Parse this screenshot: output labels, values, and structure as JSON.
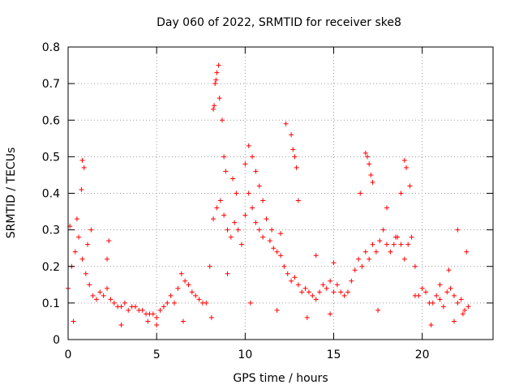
{
  "chart_data": {
    "type": "scatter",
    "title": "Day 060 of 2022, SRMTID for receiver ske8",
    "xlabel": "GPS time / hours",
    "ylabel": "SRMTID / TECUs",
    "xlim": [
      0,
      24
    ],
    "ylim": [
      0,
      0.8
    ],
    "xticks": [
      "0",
      "5",
      "10",
      "15",
      "20"
    ],
    "xtick_values": [
      0,
      5,
      10,
      15,
      20
    ],
    "yticks": [
      "0",
      "0.1",
      "0.2",
      "0.3",
      "0.4",
      "0.5",
      "0.6",
      "0.7",
      "0.8"
    ],
    "ytick_values": [
      0,
      0.1,
      0.2,
      0.3,
      0.4,
      0.5,
      0.6,
      0.7,
      0.8
    ],
    "grid": true,
    "marker": "plus",
    "series": [
      {
        "name": "SRMTID",
        "color": "#ff0000",
        "x": [
          0.0,
          0.2,
          0.4,
          0.6,
          0.8,
          1.0,
          1.2,
          1.4,
          1.6,
          1.8,
          2.0,
          2.2,
          2.4,
          2.6,
          2.8,
          3.0,
          3.2,
          3.4,
          3.6,
          3.8,
          4.0,
          4.2,
          4.4,
          4.6,
          4.8,
          5.0,
          5.2,
          5.4,
          5.6,
          5.8,
          6.0,
          6.2,
          6.4,
          6.6,
          6.8,
          7.0,
          7.2,
          7.4,
          7.6,
          7.8,
          8.0,
          8.2,
          8.4,
          8.6,
          8.8,
          9.0,
          9.2,
          9.4,
          9.6,
          9.8,
          10.0,
          10.2,
          10.4,
          10.6,
          10.8,
          11.0,
          11.2,
          11.4,
          11.6,
          11.8,
          12.0,
          12.2,
          12.4,
          12.6,
          12.8,
          13.0,
          13.2,
          13.4,
          13.6,
          13.8,
          14.0,
          14.2,
          14.4,
          14.6,
          14.8,
          15.0,
          15.2,
          15.4,
          15.6,
          15.8,
          16.0,
          16.2,
          16.4,
          16.6,
          16.8,
          17.0,
          17.2,
          17.4,
          17.6,
          17.8,
          18.0,
          18.2,
          18.4,
          18.6,
          18.8,
          19.0,
          19.2,
          19.4,
          19.6,
          19.8,
          20.0,
          20.2,
          20.4,
          20.6,
          20.8,
          21.0,
          21.2,
          21.4,
          21.6,
          21.8,
          22.0,
          22.2,
          22.4,
          22.6,
          0.1,
          0.5,
          0.75,
          0.8,
          0.9,
          1.1,
          1.3,
          2.2,
          2.3,
          8.2,
          8.25,
          8.3,
          8.35,
          8.4,
          8.5,
          8.55,
          8.7,
          8.8,
          8.9,
          9.3,
          9.5,
          10.0,
          10.2,
          10.4,
          10.6,
          10.8,
          11.0,
          11.5,
          12.0,
          12.3,
          12.6,
          12.7,
          12.8,
          12.9,
          13.0,
          14.0,
          15.0,
          16.5,
          16.8,
          16.9,
          17.0,
          17.1,
          17.2,
          18.0,
          18.5,
          18.8,
          19.0,
          19.1,
          19.3,
          21.0,
          21.5,
          22.0,
          22.5,
          0.3,
          3.0,
          4.5,
          5.0,
          6.5,
          8.1,
          9.0,
          10.3,
          11.8,
          13.5,
          14.8,
          17.5,
          19.6,
          20.5,
          21.8,
          22.3
        ],
        "y": [
          0.14,
          0.2,
          0.24,
          0.28,
          0.22,
          0.18,
          0.15,
          0.12,
          0.11,
          0.13,
          0.12,
          0.14,
          0.11,
          0.1,
          0.09,
          0.09,
          0.1,
          0.08,
          0.09,
          0.09,
          0.08,
          0.08,
          0.07,
          0.07,
          0.07,
          0.06,
          0.08,
          0.09,
          0.1,
          0.12,
          0.1,
          0.14,
          0.18,
          0.16,
          0.15,
          0.13,
          0.12,
          0.11,
          0.1,
          0.1,
          0.2,
          0.33,
          0.36,
          0.38,
          0.34,
          0.3,
          0.28,
          0.32,
          0.3,
          0.26,
          0.34,
          0.4,
          0.36,
          0.32,
          0.3,
          0.28,
          0.33,
          0.27,
          0.25,
          0.24,
          0.23,
          0.2,
          0.18,
          0.16,
          0.17,
          0.15,
          0.13,
          0.14,
          0.13,
          0.12,
          0.11,
          0.13,
          0.15,
          0.14,
          0.16,
          0.13,
          0.15,
          0.13,
          0.12,
          0.13,
          0.16,
          0.19,
          0.22,
          0.2,
          0.24,
          0.22,
          0.26,
          0.24,
          0.27,
          0.3,
          0.26,
          0.24,
          0.26,
          0.28,
          0.26,
          0.22,
          0.26,
          0.28,
          0.2,
          0.12,
          0.14,
          0.13,
          0.1,
          0.1,
          0.12,
          0.11,
          0.09,
          0.13,
          0.14,
          0.12,
          0.1,
          0.11,
          0.08,
          0.09,
          0.31,
          0.33,
          0.41,
          0.49,
          0.47,
          0.26,
          0.3,
          0.22,
          0.27,
          0.63,
          0.64,
          0.7,
          0.71,
          0.73,
          0.75,
          0.66,
          0.6,
          0.5,
          0.46,
          0.44,
          0.4,
          0.48,
          0.53,
          0.5,
          0.46,
          0.42,
          0.38,
          0.3,
          0.29,
          0.59,
          0.56,
          0.52,
          0.5,
          0.47,
          0.38,
          0.23,
          0.21,
          0.4,
          0.51,
          0.5,
          0.48,
          0.45,
          0.43,
          0.36,
          0.28,
          0.4,
          0.49,
          0.47,
          0.42,
          0.15,
          0.19,
          0.3,
          0.24,
          0.05,
          0.04,
          0.05,
          0.04,
          0.05,
          0.06,
          0.18,
          0.1,
          0.08,
          0.06,
          0.07,
          0.08,
          0.12,
          0.04,
          0.05,
          0.07
        ]
      }
    ]
  }
}
